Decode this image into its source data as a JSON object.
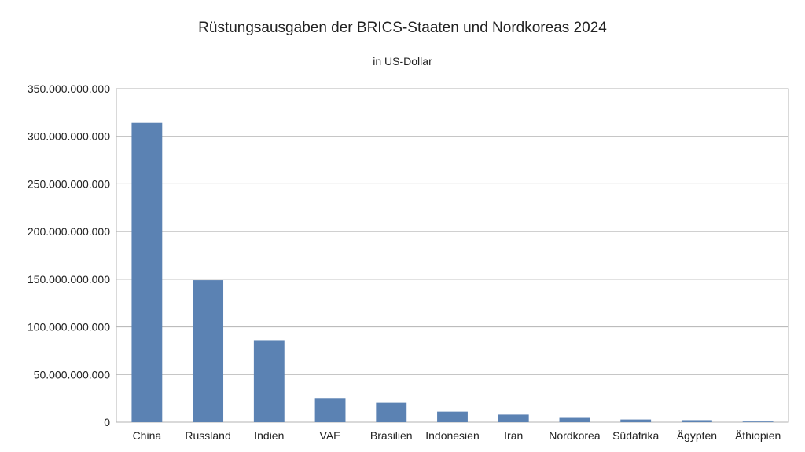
{
  "chart_data": {
    "type": "bar",
    "title": "Rüstungsausgaben der BRICS-Staaten und Nordkoreas 2024",
    "subtitle": "in US-Dollar",
    "xlabel": "",
    "ylabel": "",
    "categories": [
      "China",
      "Russland",
      "Indien",
      "VAE",
      "Brasilien",
      "Indonesien",
      "Iran",
      "Nordkorea",
      "Südafrika",
      "Ägypten",
      "Äthiopien"
    ],
    "values": [
      314000000000,
      149000000000,
      86100000000,
      25300000000,
      20900000000,
      11000000000,
      7900000000,
      4500000000,
      2800000000,
      2100000000,
      700000000
    ],
    "ylim": [
      0,
      350000000000
    ],
    "yticks": [
      0,
      50000000000,
      100000000000,
      150000000000,
      200000000000,
      250000000000,
      300000000000,
      350000000000
    ],
    "ytick_labels": [
      "0",
      "50.000.000.000",
      "100.000.000.000",
      "150.000.000.000",
      "200.000.000.000",
      "250.000.000.000",
      "300.000.000.000",
      "350.000.000.000"
    ],
    "grid": true,
    "legend": "none",
    "bar_color": "#5b82b3"
  }
}
